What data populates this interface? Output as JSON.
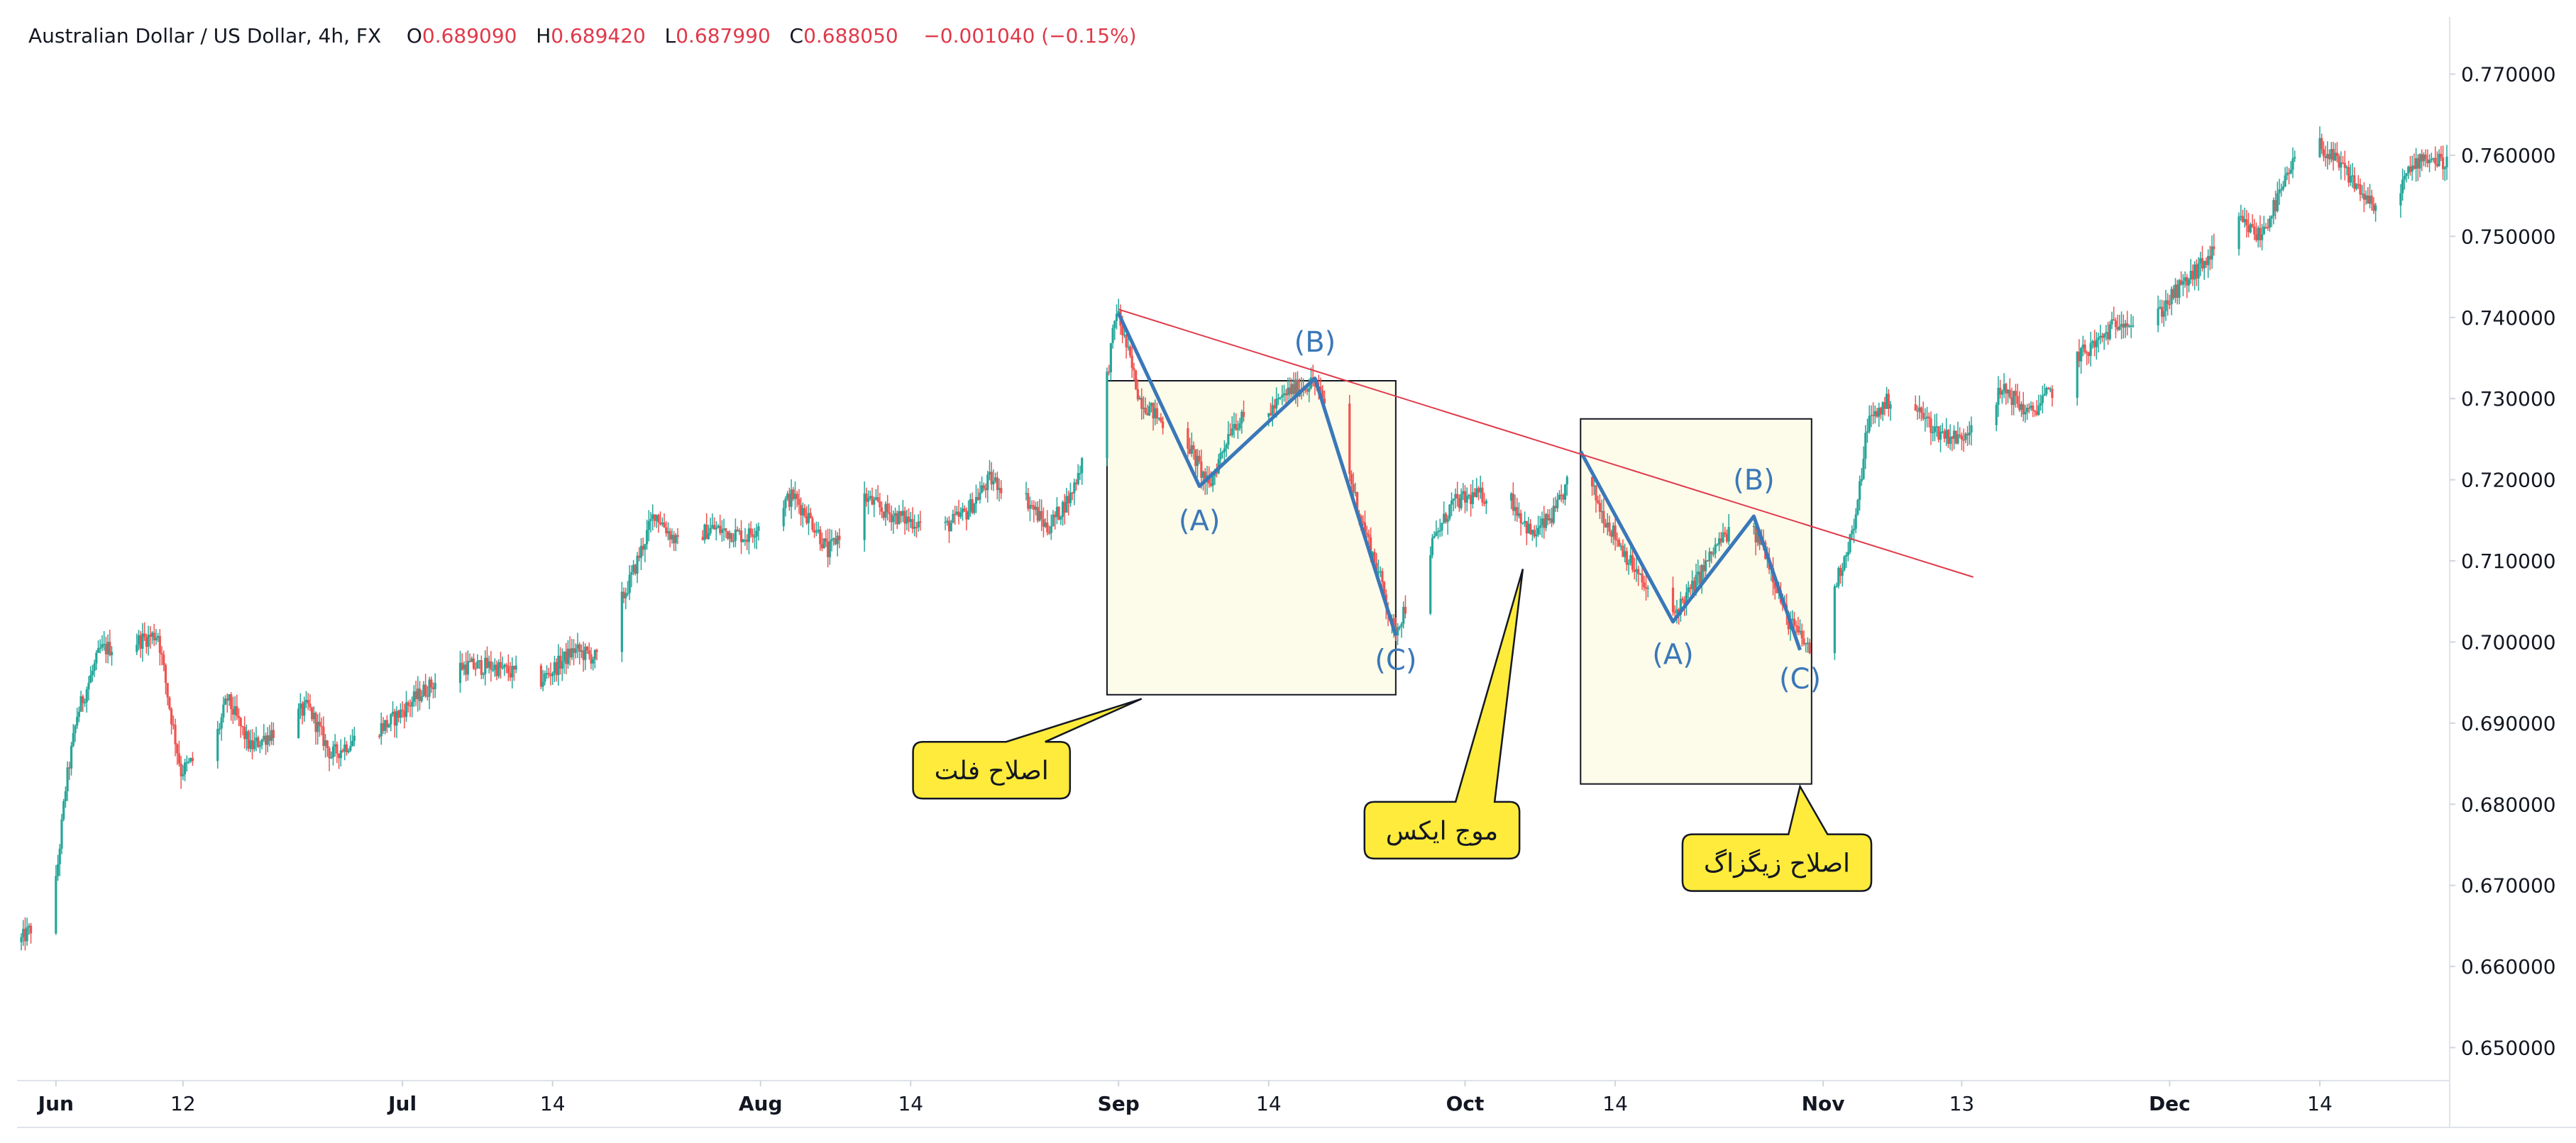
{
  "header": {
    "symbol": "Australian Dollar / US Dollar, 4h, FX",
    "open_label": "O",
    "open": "0.689090",
    "high_label": "H",
    "high": "0.689420",
    "low_label": "L",
    "low": "0.687990",
    "close_label": "C",
    "close": "0.688050",
    "change": "−0.001040 (−0.15%)"
  },
  "colors": {
    "up": "#26a69a",
    "down": "#ef5350",
    "wave": "#3a78b8",
    "trendline": "#e0394a",
    "box_fill": "#fdfbea",
    "callout_fill": "#ffeb3b"
  },
  "chart_data": {
    "type": "candlestick",
    "instrument": "Australian Dollar / US Dollar",
    "timeframe": "4h",
    "ylim": [
      0.645,
      0.775
    ],
    "y_ticks": [
      "0.770000",
      "0.760000",
      "0.750000",
      "0.740000",
      "0.730000",
      "0.720000",
      "0.710000",
      "0.700000",
      "0.690000",
      "0.680000",
      "0.670000",
      "0.660000",
      "0.650000"
    ],
    "x_ticks": [
      {
        "label": "Jun",
        "date": "2020-06-01",
        "bold": true
      },
      {
        "label": "12",
        "date": "2020-06-12",
        "bold": false
      },
      {
        "label": "Jul",
        "date": "2020-07-01",
        "bold": true
      },
      {
        "label": "14",
        "date": "2020-07-14",
        "bold": false
      },
      {
        "label": "Aug",
        "date": "2020-08-01",
        "bold": true
      },
      {
        "label": "14",
        "date": "2020-08-14",
        "bold": false
      },
      {
        "label": "Sep",
        "date": "2020-09-01",
        "bold": true
      },
      {
        "label": "14",
        "date": "2020-09-14",
        "bold": false
      },
      {
        "label": "Oct",
        "date": "2020-10-01",
        "bold": true
      },
      {
        "label": "14",
        "date": "2020-10-14",
        "bold": false
      },
      {
        "label": "Nov",
        "date": "2020-11-01",
        "bold": true
      },
      {
        "label": "13",
        "date": "2020-11-13",
        "bold": false
      },
      {
        "label": "Dec",
        "date": "2020-12-01",
        "bold": true
      },
      {
        "label": "14",
        "date": "2020-12-14",
        "bold": false
      }
    ],
    "price_path": [
      [
        "2020-05-29",
        0.663
      ],
      [
        "2020-06-01",
        0.668
      ],
      [
        "2020-06-02",
        0.682
      ],
      [
        "2020-06-03",
        0.691
      ],
      [
        "2020-06-05",
        0.699
      ],
      [
        "2020-06-08",
        0.7
      ],
      [
        "2020-06-10",
        0.701
      ],
      [
        "2020-06-11",
        0.692
      ],
      [
        "2020-06-12",
        0.684
      ],
      [
        "2020-06-15",
        0.688
      ],
      [
        "2020-06-16",
        0.693
      ],
      [
        "2020-06-18",
        0.687
      ],
      [
        "2020-06-20",
        0.689
      ],
      [
        "2020-06-23",
        0.692
      ],
      [
        "2020-06-25",
        0.686
      ],
      [
        "2020-06-27",
        0.688
      ],
      [
        "2020-06-30",
        0.69
      ],
      [
        "2020-07-03",
        0.694
      ],
      [
        "2020-07-06",
        0.697
      ],
      [
        "2020-07-09",
        0.697
      ],
      [
        "2020-07-13",
        0.695
      ],
      [
        "2020-07-16",
        0.699
      ],
      [
        "2020-07-18",
        0.698
      ],
      [
        "2020-07-21",
        0.708
      ],
      [
        "2020-07-23",
        0.716
      ],
      [
        "2020-07-25",
        0.712
      ],
      [
        "2020-07-28",
        0.714
      ],
      [
        "2020-07-31",
        0.713
      ],
      [
        "2020-08-02",
        0.716
      ],
      [
        "2020-08-04",
        0.718
      ],
      [
        "2020-08-06",
        0.714
      ],
      [
        "2020-08-07",
        0.711
      ],
      [
        "2020-08-10",
        0.718
      ],
      [
        "2020-08-12",
        0.716
      ],
      [
        "2020-08-14",
        0.715
      ],
      [
        "2020-08-17",
        0.714
      ],
      [
        "2020-08-19",
        0.716
      ],
      [
        "2020-08-21",
        0.72
      ],
      [
        "2020-08-24",
        0.718
      ],
      [
        "2020-08-26",
        0.714
      ],
      [
        "2020-08-28",
        0.718
      ],
      [
        "2020-08-31",
        0.731
      ],
      [
        "2020-09-01",
        0.741
      ],
      [
        "2020-09-03",
        0.73
      ],
      [
        "2020-09-05",
        0.727
      ],
      [
        "2020-09-07",
        0.725
      ],
      [
        "2020-09-09",
        0.719
      ],
      [
        "2020-09-11",
        0.727
      ],
      [
        "2020-09-14",
        0.728
      ],
      [
        "2020-09-16",
        0.731
      ],
      [
        "2020-09-18",
        0.732
      ],
      [
        "2020-09-20",
        0.727
      ],
      [
        "2020-09-22",
        0.716
      ],
      [
        "2020-09-24",
        0.707
      ],
      [
        "2020-09-25",
        0.701
      ],
      [
        "2020-09-28",
        0.711
      ],
      [
        "2020-09-30",
        0.717
      ],
      [
        "2020-10-02",
        0.718
      ],
      [
        "2020-10-05",
        0.718
      ],
      [
        "2020-10-07",
        0.713
      ],
      [
        "2020-10-09",
        0.716
      ],
      [
        "2020-10-11",
        0.723
      ],
      [
        "2020-10-13",
        0.716
      ],
      [
        "2020-10-15",
        0.711
      ],
      [
        "2020-10-17",
        0.706
      ],
      [
        "2020-10-19",
        0.703
      ],
      [
        "2020-10-21",
        0.707
      ],
      [
        "2020-10-23",
        0.712
      ],
      [
        "2020-10-25",
        0.715
      ],
      [
        "2020-10-27",
        0.712
      ],
      [
        "2020-10-29",
        0.703
      ],
      [
        "2020-10-31",
        0.699
      ],
      [
        "2020-11-02",
        0.706
      ],
      [
        "2020-11-04",
        0.715
      ],
      [
        "2020-11-05",
        0.727
      ],
      [
        "2020-11-07",
        0.73
      ],
      [
        "2020-11-09",
        0.729
      ],
      [
        "2020-11-11",
        0.726
      ],
      [
        "2020-11-13",
        0.725
      ],
      [
        "2020-11-15",
        0.729
      ],
      [
        "2020-11-17",
        0.731
      ],
      [
        "2020-11-19",
        0.728
      ],
      [
        "2020-11-21",
        0.731
      ],
      [
        "2020-11-23",
        0.735
      ],
      [
        "2020-11-25",
        0.737
      ],
      [
        "2020-11-27",
        0.74
      ],
      [
        "2020-11-29",
        0.738
      ],
      [
        "2020-12-01",
        0.742
      ],
      [
        "2020-12-03",
        0.745
      ],
      [
        "2020-12-05",
        0.748
      ],
      [
        "2020-12-07",
        0.752
      ],
      [
        "2020-12-09",
        0.75
      ],
      [
        "2020-12-11",
        0.756
      ],
      [
        "2020-12-13",
        0.763
      ],
      [
        "2020-12-15",
        0.76
      ],
      [
        "2020-12-17",
        0.757
      ],
      [
        "2020-12-19",
        0.753
      ],
      [
        "2020-12-21",
        0.756
      ],
      [
        "2020-12-23",
        0.76
      ],
      [
        "2020-12-25",
        0.759
      ]
    ],
    "trendline": {
      "from": [
        "2020-09-01",
        0.741
      ],
      "to": [
        "2020-11-14",
        0.708
      ]
    },
    "patterns": [
      {
        "name": "flat",
        "box": {
          "from": "2020-08-31",
          "to": "2020-09-25",
          "low": 0.6935,
          "high": 0.7322
        },
        "waves": [
          [
            "2020-09-01",
            0.7405
          ],
          [
            "2020-09-08",
            0.7192
          ],
          [
            "2020-09-18",
            0.7325
          ],
          [
            "2020-09-25",
            0.7008
          ]
        ],
        "wave_labels": [
          {
            "text": "(A)",
            "date": "2020-09-08",
            "price": 0.715
          },
          {
            "text": "(B)",
            "date": "2020-09-18",
            "price": 0.737
          },
          {
            "text": "(C)",
            "date": "2020-09-25",
            "price": 0.6978
          }
        ]
      },
      {
        "name": "zigzag",
        "box": {
          "from": "2020-10-11",
          "to": "2020-10-31",
          "low": 0.6825,
          "high": 0.7275
        },
        "waves": [
          [
            "2020-10-11",
            0.7235
          ],
          [
            "2020-10-19",
            0.7025
          ],
          [
            "2020-10-26",
            0.7155
          ],
          [
            "2020-10-30",
            0.699
          ]
        ],
        "wave_labels": [
          {
            "text": "(A)",
            "date": "2020-10-19",
            "price": 0.6985
          },
          {
            "text": "(B)",
            "date": "2020-10-26",
            "price": 0.72
          },
          {
            "text": "(C)",
            "date": "2020-10-30",
            "price": 0.6955
          }
        ]
      }
    ],
    "callouts": [
      {
        "text": "اصلاح فلت",
        "date": "2020-08-21",
        "price": 0.6842,
        "tip_date": "2020-09-03",
        "tip_price": 0.693
      },
      {
        "text": "موج ایکس",
        "date": "2020-09-29",
        "price": 0.6768,
        "tip_date": "2020-10-06",
        "tip_price": 0.709
      },
      {
        "text": "اصلاح زیگزاگ",
        "date": "2020-10-28",
        "price": 0.6728,
        "tip_date": "2020-10-30",
        "tip_price": 0.6822
      }
    ]
  }
}
